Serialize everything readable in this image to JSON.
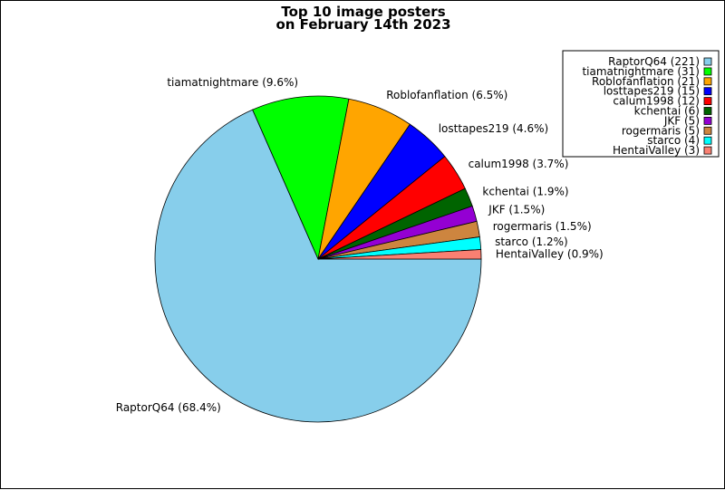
{
  "chart_data": {
    "type": "pie",
    "title_lines": [
      "Top 10 image posters",
      "on February 14th 2023"
    ],
    "slices": [
      {
        "name": "RaptorQ64",
        "count": 221,
        "percent": 68.4,
        "color": "#87ceeb",
        "legend_label": "RaptorQ64 (221)",
        "slice_label": "RaptorQ64 (68.4%)"
      },
      {
        "name": "tiamatnightmare",
        "count": 31,
        "percent": 9.6,
        "color": "#00ff00",
        "legend_label": "tiamatnightmare (31)",
        "slice_label": "tiamatnightmare (9.6%)"
      },
      {
        "name": "Roblofanflation",
        "count": 21,
        "percent": 6.5,
        "color": "#ffa500",
        "legend_label": "Roblofanflation (21)",
        "slice_label": "Roblofanflation (6.5%)"
      },
      {
        "name": "losttapes219",
        "count": 15,
        "percent": 4.6,
        "color": "#0000ff",
        "legend_label": "losttapes219 (15)",
        "slice_label": "losttapes219 (4.6%)"
      },
      {
        "name": "calum1998",
        "count": 12,
        "percent": 3.7,
        "color": "#ff0000",
        "legend_label": "calum1998 (12)",
        "slice_label": "calum1998 (3.7%)"
      },
      {
        "name": "kchentai",
        "count": 6,
        "percent": 1.9,
        "color": "#006400",
        "legend_label": "kchentai (6)",
        "slice_label": "kchentai (1.9%)"
      },
      {
        "name": "JKF",
        "count": 5,
        "percent": 1.5,
        "color": "#9400d3",
        "legend_label": "JKF (5)",
        "slice_label": "JKF (1.5%)"
      },
      {
        "name": "rogermaris",
        "count": 5,
        "percent": 1.5,
        "color": "#cd853f",
        "legend_label": "rogermaris (5)",
        "slice_label": "rogermaris (1.5%)"
      },
      {
        "name": "starco",
        "count": 4,
        "percent": 1.2,
        "color": "#00ffff",
        "legend_label": "starco (4)",
        "slice_label": "starco (1.2%)"
      },
      {
        "name": "HentaiValley",
        "count": 3,
        "percent": 0.9,
        "color": "#fa8072",
        "legend_label": "HentaiValley (3)",
        "slice_label": "HentaiValley (0.9%)"
      }
    ],
    "start_angle_deg": 0,
    "direction": "clockwise",
    "legend_position": "top-right"
  }
}
